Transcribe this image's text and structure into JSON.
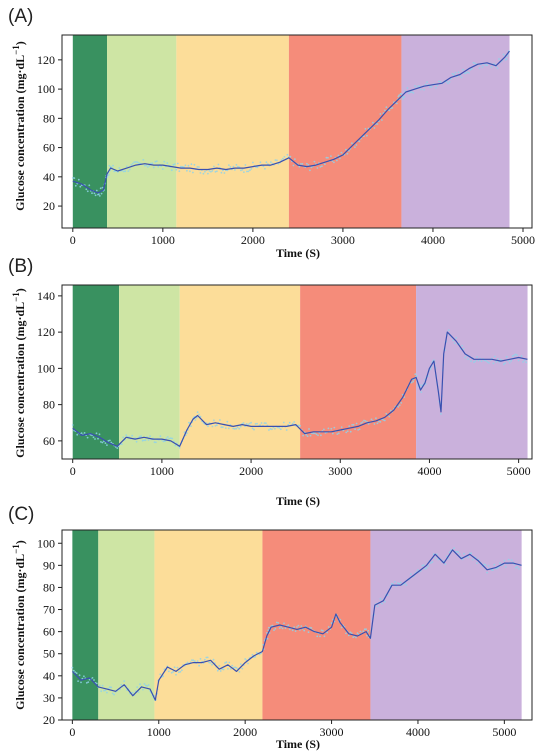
{
  "colors": {
    "phase_1": "#2e8b57",
    "phase_2": "#c9e29a",
    "phase_3": "#fcd98e",
    "phase_4": "#f47f6b",
    "phase_5": "#c4a8d8",
    "fit_line": "#3a50b0",
    "raw_points": "#8fd3ea",
    "background": "#ffffff"
  },
  "chart_data": [
    {
      "type": "line",
      "panel_label": "(A)",
      "xlabel": "Time (S)",
      "ylabel": "Glucose concentration (mg·dL",
      "ylabel_sup": "−1",
      "ylabel_close": ")",
      "xlim": [
        -120,
        5100
      ],
      "ylim": [
        5,
        137
      ],
      "xticks": [
        0,
        1000,
        2000,
        3000,
        4000,
        5000
      ],
      "yticks": [
        20,
        40,
        60,
        80,
        100,
        120
      ],
      "grid": false,
      "phases": [
        {
          "x0": 0,
          "x1": 380,
          "color": "phase_1"
        },
        {
          "x0": 380,
          "x1": 1150,
          "color": "phase_2"
        },
        {
          "x0": 1150,
          "x1": 2400,
          "color": "phase_3"
        },
        {
          "x0": 2400,
          "x1": 3650,
          "color": "phase_4"
        },
        {
          "x0": 3650,
          "x1": 4850,
          "color": "phase_5"
        }
      ],
      "series": [
        {
          "x": [
            0,
            100,
            200,
            280,
            340,
            380,
            420,
            500,
            600,
            700,
            800,
            900,
            1000,
            1100,
            1200,
            1300,
            1400,
            1500,
            1600,
            1700,
            1800,
            1900,
            2000,
            2100,
            2200,
            2300,
            2400,
            2500,
            2600,
            2700,
            2800,
            2900,
            3000,
            3100,
            3200,
            3300,
            3400,
            3500,
            3600,
            3650,
            3700,
            3800,
            3900,
            4000,
            4100,
            4200,
            4300,
            4400,
            4500,
            4600,
            4700,
            4800,
            4850
          ],
          "y": [
            37,
            35,
            31,
            29,
            31,
            42,
            46,
            44,
            46,
            48,
            49,
            48,
            48,
            47,
            46,
            46,
            45,
            45,
            46,
            45,
            46,
            46,
            47,
            48,
            48,
            50,
            53,
            48,
            47,
            48,
            50,
            52,
            55,
            61,
            67,
            73,
            79,
            86,
            92,
            95,
            98,
            100,
            102,
            103,
            104,
            108,
            110,
            114,
            117,
            118,
            116,
            122,
            126
          ]
        }
      ]
    },
    {
      "type": "line",
      "panel_label": "(B)",
      "xlabel": "Time (S)",
      "ylabel": "Glucose concentration (mg·dL",
      "ylabel_sup": "−1",
      "ylabel_close": ")",
      "xlim": [
        -120,
        5150
      ],
      "ylim": [
        50,
        146
      ],
      "xticks": [
        0,
        1000,
        2000,
        3000,
        4000,
        5000
      ],
      "yticks": [
        60,
        80,
        100,
        120,
        140
      ],
      "grid": false,
      "phases": [
        {
          "x0": 0,
          "x1": 520,
          "color": "phase_1"
        },
        {
          "x0": 520,
          "x1": 1200,
          "color": "phase_2"
        },
        {
          "x0": 1200,
          "x1": 2550,
          "color": "phase_3"
        },
        {
          "x0": 2550,
          "x1": 3850,
          "color": "phase_4"
        },
        {
          "x0": 3850,
          "x1": 5100,
          "color": "phase_5"
        }
      ],
      "series": [
        {
          "x": [
            0,
            100,
            200,
            300,
            400,
            500,
            600,
            700,
            800,
            900,
            1000,
            1100,
            1200,
            1280,
            1350,
            1400,
            1500,
            1600,
            1700,
            1800,
            1900,
            2000,
            2100,
            2200,
            2300,
            2400,
            2500,
            2600,
            2700,
            2800,
            2900,
            3000,
            3100,
            3200,
            3300,
            3400,
            3500,
            3600,
            3700,
            3800,
            3850,
            3900,
            3950,
            4000,
            4050,
            4100,
            4130,
            4160,
            4200,
            4300,
            4400,
            4500,
            4600,
            4700,
            4800,
            4900,
            5000,
            5100
          ],
          "y": [
            67,
            63,
            64,
            62,
            59,
            57,
            62,
            61,
            62,
            61,
            61,
            60,
            57,
            66,
            72,
            74,
            69,
            70,
            69,
            68,
            69,
            68,
            68,
            68,
            68,
            68,
            69,
            64,
            65,
            65,
            65,
            66,
            67,
            68,
            70,
            71,
            73,
            77,
            84,
            94,
            95,
            88,
            92,
            100,
            104,
            87,
            76,
            108,
            120,
            115,
            108,
            105,
            105,
            105,
            104,
            105,
            106,
            105
          ]
        }
      ]
    },
    {
      "type": "line",
      "panel_label": "(C)",
      "xlabel": "Time (S)",
      "ylabel": "Glucose concentration (mg·dL",
      "ylabel_sup": "−1",
      "ylabel_close": ")",
      "xlim": [
        -120,
        5320
      ],
      "ylim": [
        20,
        106
      ],
      "xticks": [
        0,
        1000,
        2000,
        3000,
        4000,
        5000
      ],
      "yticks": [
        20,
        30,
        40,
        50,
        60,
        70,
        80,
        90,
        100
      ],
      "grid": false,
      "phases": [
        {
          "x0": 0,
          "x1": 300,
          "color": "phase_1"
        },
        {
          "x0": 300,
          "x1": 950,
          "color": "phase_2"
        },
        {
          "x0": 950,
          "x1": 2200,
          "color": "phase_3"
        },
        {
          "x0": 2200,
          "x1": 3450,
          "color": "phase_4"
        },
        {
          "x0": 3450,
          "x1": 5200,
          "color": "phase_5"
        }
      ],
      "series": [
        {
          "x": [
            0,
            100,
            200,
            300,
            400,
            500,
            600,
            700,
            800,
            900,
            960,
            1000,
            1100,
            1200,
            1300,
            1400,
            1500,
            1600,
            1700,
            1800,
            1900,
            2000,
            2100,
            2200,
            2250,
            2300,
            2400,
            2500,
            2600,
            2700,
            2800,
            2900,
            3000,
            3050,
            3100,
            3200,
            3300,
            3400,
            3450,
            3500,
            3600,
            3700,
            3800,
            3900,
            4000,
            4100,
            4200,
            4300,
            4400,
            4500,
            4600,
            4700,
            4800,
            4900,
            5000,
            5100,
            5200
          ],
          "y": [
            42,
            38,
            39,
            35,
            34,
            33,
            36,
            31,
            35,
            34,
            29,
            38,
            44,
            42,
            45,
            46,
            46,
            47,
            43,
            45,
            42,
            46,
            49,
            51,
            58,
            62,
            63,
            62,
            61,
            62,
            60,
            59,
            62,
            68,
            64,
            59,
            58,
            60,
            57,
            72,
            74,
            81,
            81,
            84,
            87,
            90,
            95,
            91,
            97,
            93,
            95,
            92,
            88,
            89,
            91,
            91,
            90
          ]
        }
      ]
    }
  ]
}
